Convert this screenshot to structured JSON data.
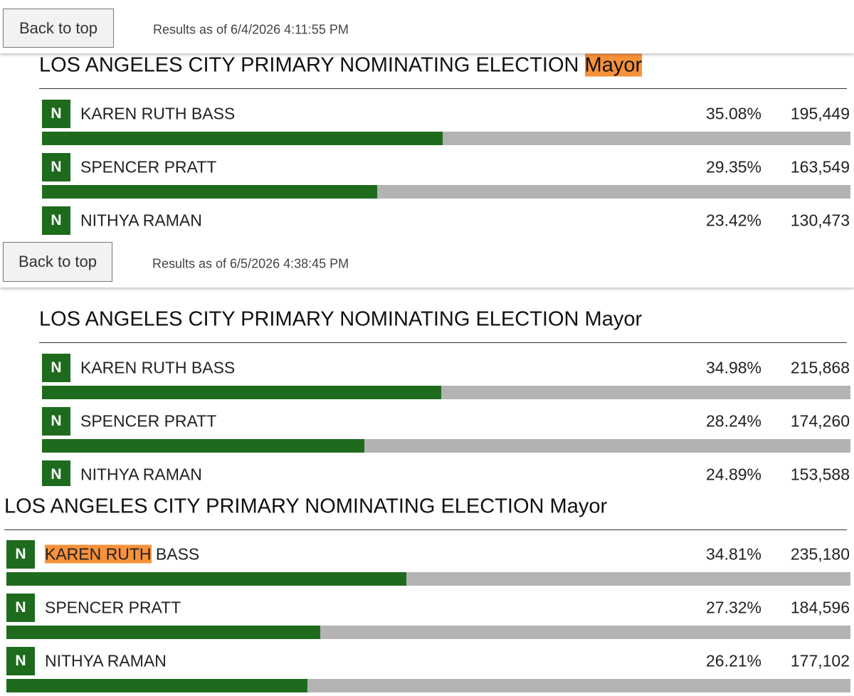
{
  "panels": [
    {
      "header": {
        "button": "Back to top",
        "results_as_of": "Results as of 6/4/2026 4:11:55 PM"
      },
      "title": "LOS ANGELES CITY PRIMARY NOMINATING ELECTION",
      "office": "Mayor",
      "office_highlighted": true,
      "candidates": [
        {
          "party": "N",
          "name_parts": [
            {
              "text": "KAREN RUTH BASS",
              "highlight": false
            }
          ],
          "percent": 35.08,
          "percent_label": "35.08%",
          "votes": 195449,
          "votes_label": "195,449"
        },
        {
          "party": "N",
          "name_parts": [
            {
              "text": "SPENCER PRATT",
              "highlight": false
            }
          ],
          "percent": 29.35,
          "percent_label": "29.35%",
          "votes": 163549,
          "votes_label": "163,549"
        },
        {
          "party": "N",
          "name_parts": [
            {
              "text": "NITHYA RAMAN",
              "highlight": false
            }
          ],
          "percent": 23.42,
          "percent_label": "23.42%",
          "votes": 130473,
          "votes_label": "130,473"
        }
      ]
    },
    {
      "header": {
        "button": "Back to top",
        "results_as_of": "Results as of 6/5/2026 4:38:45 PM"
      },
      "title": "LOS ANGELES CITY PRIMARY NOMINATING ELECTION",
      "office": "Mayor",
      "office_highlighted": false,
      "candidates": [
        {
          "party": "N",
          "name_parts": [
            {
              "text": "KAREN RUTH BASS",
              "highlight": false
            }
          ],
          "percent": 34.98,
          "percent_label": "34.98%",
          "votes": 215868,
          "votes_label": "215,868"
        },
        {
          "party": "N",
          "name_parts": [
            {
              "text": "SPENCER PRATT",
              "highlight": false
            }
          ],
          "percent": 28.24,
          "percent_label": "28.24%",
          "votes": 174260,
          "votes_label": "174,260"
        },
        {
          "party": "N",
          "name_parts": [
            {
              "text": "NITHYA RAMAN",
              "highlight": false
            }
          ],
          "percent": 24.89,
          "percent_label": "24.89%",
          "votes": 153588,
          "votes_label": "153,588"
        }
      ]
    },
    {
      "title": "LOS ANGELES CITY PRIMARY NOMINATING ELECTION",
      "office": "Mayor",
      "office_highlighted": false,
      "candidates": [
        {
          "party": "N",
          "name_parts": [
            {
              "text": "KAREN RUTH",
              "highlight": true
            },
            {
              "text": "BASS",
              "highlight": false
            }
          ],
          "percent": 34.81,
          "percent_label": "34.81%",
          "votes": 235180,
          "votes_label": "235,180"
        },
        {
          "party": "N",
          "name_parts": [
            {
              "text": "SPENCER PRATT",
              "highlight": false
            }
          ],
          "percent": 27.32,
          "percent_label": "27.32%",
          "votes": 184596,
          "votes_label": "184,596"
        },
        {
          "party": "N",
          "name_parts": [
            {
              "text": "NITHYA RAMAN",
              "highlight": false
            }
          ],
          "percent": 26.21,
          "percent_label": "26.21%",
          "votes": 177102,
          "votes_label": "177,102"
        }
      ]
    }
  ]
}
